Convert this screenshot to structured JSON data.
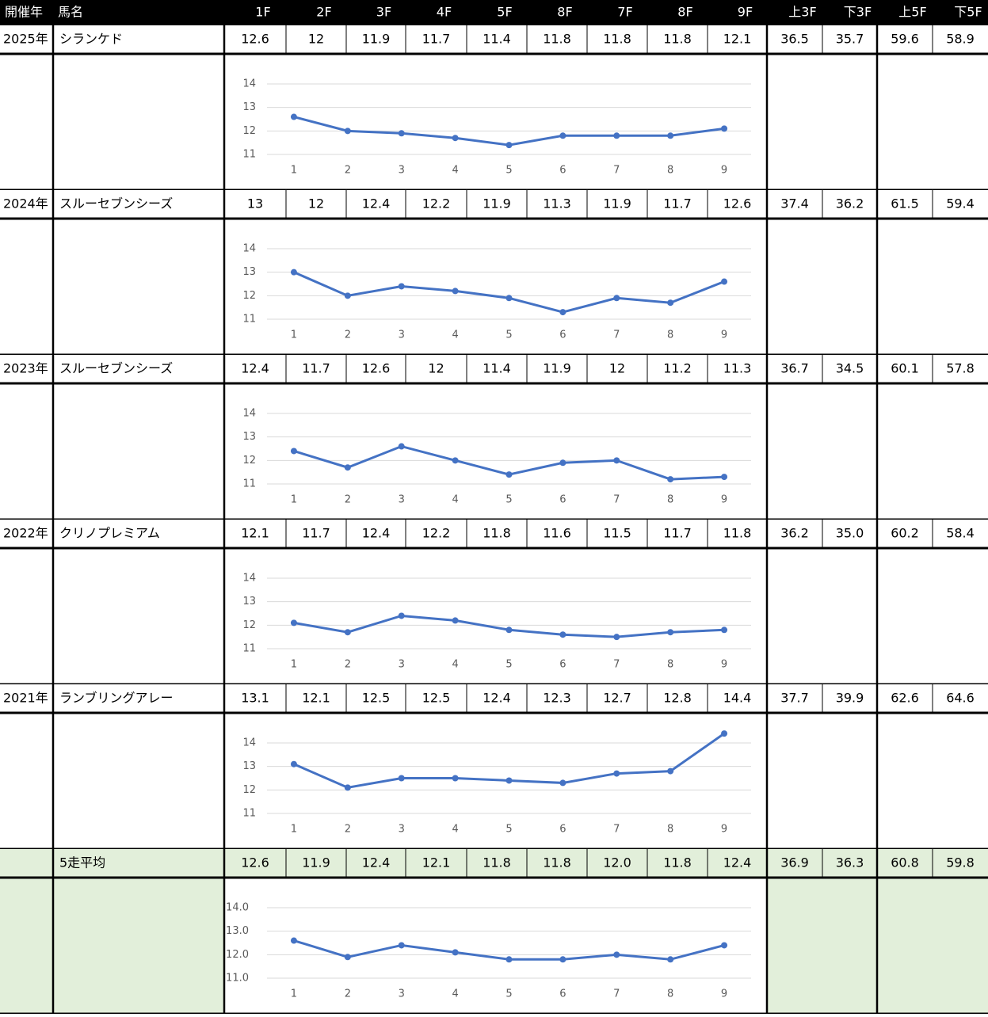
{
  "header": [
    "開催年",
    "馬名",
    "1F",
    "2F",
    "3F",
    "4F",
    "5F",
    "8F",
    "7F",
    "8F",
    "9F",
    "上3F",
    "下3F",
    "上5F",
    "下5F"
  ],
  "rows": [
    {
      "year": "2025年",
      "horse": "シランケド",
      "splits": [
        12.6,
        12,
        11.9,
        11.7,
        11.4,
        11.8,
        11.8,
        11.8,
        12.1
      ],
      "sums": [
        36.5,
        35.7,
        59.6,
        58.9
      ],
      "chart": {
        "type": "line",
        "categories": [
          1,
          2,
          3,
          4,
          5,
          6,
          7,
          8,
          9
        ],
        "ylim": [
          11,
          14
        ],
        "yticks": [
          11,
          12,
          13,
          14
        ],
        "color": "#4472c4"
      }
    },
    {
      "year": "2024年",
      "horse": "スルーセブンシーズ",
      "splits": [
        13,
        12,
        12.4,
        12.2,
        11.9,
        11.3,
        11.9,
        11.7,
        12.6
      ],
      "sums": [
        37.4,
        36.2,
        61.5,
        59.4
      ],
      "chart": {
        "type": "line",
        "categories": [
          1,
          2,
          3,
          4,
          5,
          6,
          7,
          8,
          9
        ],
        "ylim": [
          11,
          14
        ],
        "yticks": [
          11,
          12,
          13,
          14
        ],
        "color": "#4472c4"
      }
    },
    {
      "year": "2023年",
      "horse": "スルーセブンシーズ",
      "splits": [
        12.4,
        11.7,
        12.6,
        12,
        11.4,
        11.9,
        12,
        11.2,
        11.3
      ],
      "sums": [
        36.7,
        34.5,
        60.1,
        57.8
      ],
      "chart": {
        "type": "line",
        "categories": [
          1,
          2,
          3,
          4,
          5,
          6,
          7,
          8,
          9
        ],
        "ylim": [
          11,
          14
        ],
        "yticks": [
          11,
          12,
          13,
          14
        ],
        "color": "#4472c4"
      }
    },
    {
      "year": "2022年",
      "horse": "クリノプレミアム",
      "splits": [
        12.1,
        11.7,
        12.4,
        12.2,
        11.8,
        11.6,
        11.5,
        11.7,
        11.8
      ],
      "sums": [
        36.2,
        {
          "value": 35.0,
          "label": "35.0"
        },
        60.2,
        58.4
      ],
      "chart": {
        "type": "line",
        "categories": [
          1,
          2,
          3,
          4,
          5,
          6,
          7,
          8,
          9
        ],
        "ylim": [
          11,
          14
        ],
        "yticks": [
          11,
          12,
          13,
          14
        ],
        "color": "#4472c4"
      }
    },
    {
      "year": "2021年",
      "horse": "ランブリングアレー",
      "splits": [
        13.1,
        12.1,
        12.5,
        12.5,
        12.4,
        12.3,
        12.7,
        12.8,
        14.4
      ],
      "sums": [
        37.7,
        39.9,
        62.6,
        64.6
      ],
      "chart": {
        "type": "line",
        "categories": [
          1,
          2,
          3,
          4,
          5,
          6,
          7,
          8,
          9
        ],
        "ylim": [
          11,
          14
        ],
        "yticks": [
          11,
          12,
          13,
          14
        ],
        "color": "#4472c4"
      }
    }
  ],
  "average": {
    "horse": "5走平均",
    "splits": [
      12.6,
      11.9,
      12.4,
      12.1,
      11.8,
      11.8,
      {
        "value": 12.0,
        "label": "12.0"
      },
      11.8,
      12.4
    ],
    "sums": [
      36.9,
      36.3,
      60.8,
      59.8
    ],
    "chart": {
      "type": "line",
      "categories": [
        1,
        2,
        3,
        4,
        5,
        6,
        7,
        8,
        9
      ],
      "ylim": [
        11,
        14
      ],
      "yticks": [
        {
          "value": 11,
          "label": "11.0"
        },
        {
          "value": 12,
          "label": "12.0"
        },
        {
          "value": 13,
          "label": "13.0"
        },
        {
          "value": 14,
          "label": "14.0"
        }
      ],
      "color": "#4472c4"
    }
  }
}
